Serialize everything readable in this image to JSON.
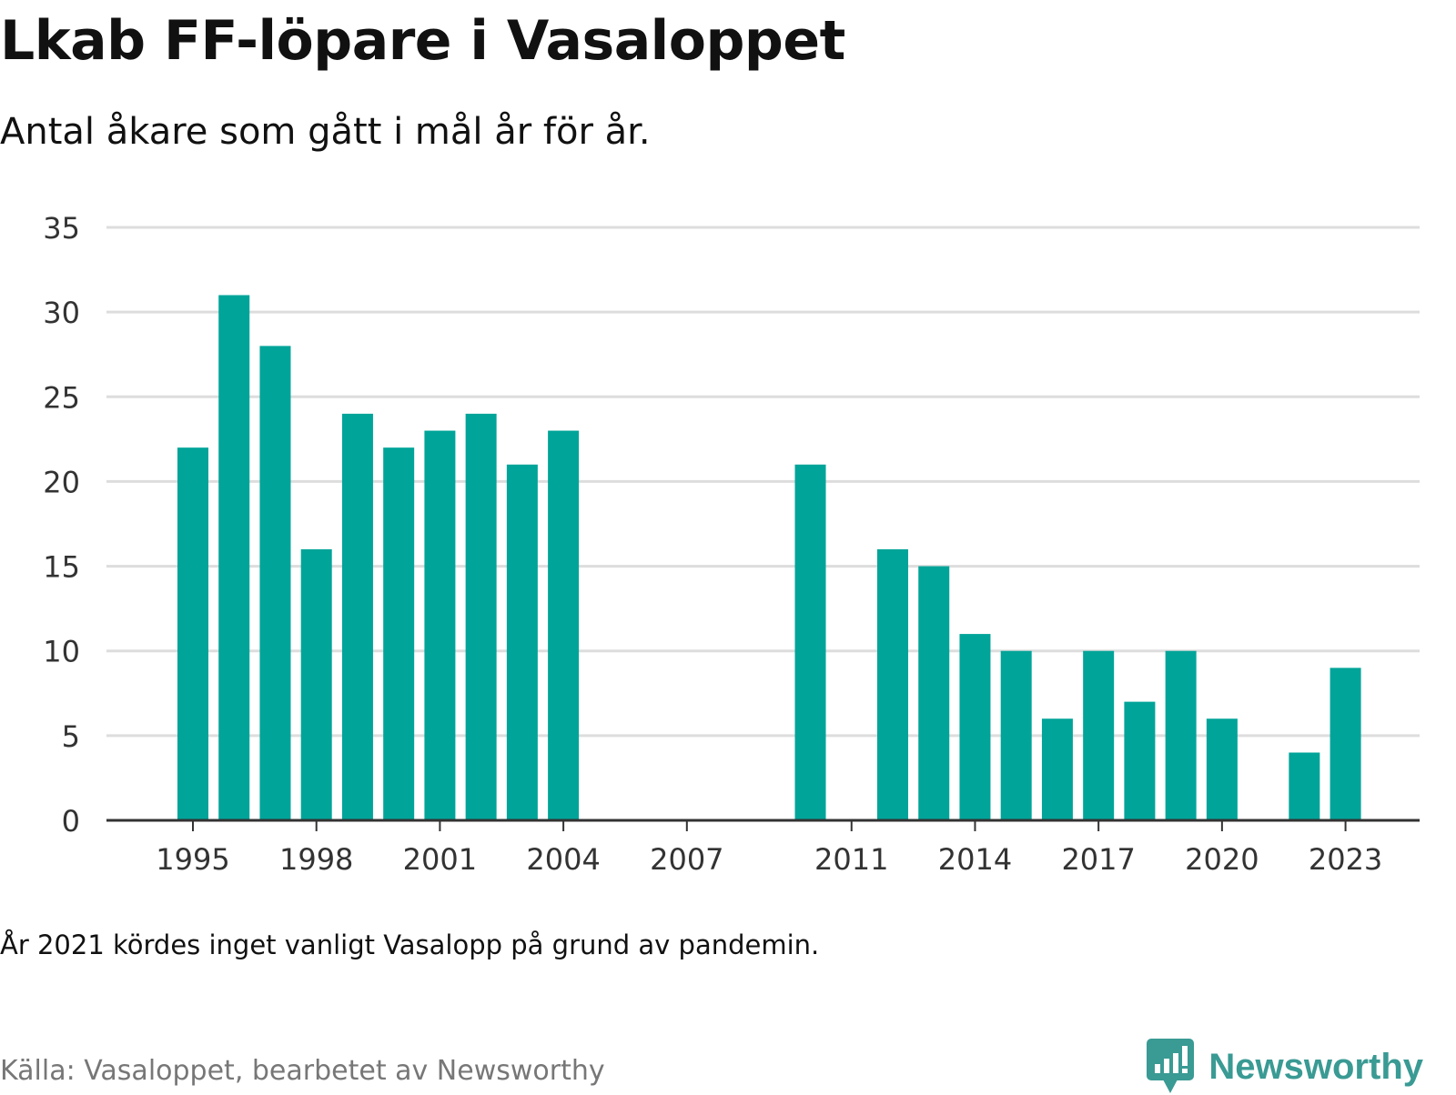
{
  "title": "Lkab FF-löpare i Vasaloppet",
  "subtitle": "Antal åkare som gått i mål år för år.",
  "note": "År 2021 kördes inget vanligt Vasalopp på grund av pandemin.",
  "source": "Källa: Vasaloppet, bearbetet av Newsworthy",
  "brand": {
    "name": "Newsworthy",
    "icon": "bar-chart-speech-bubble-icon",
    "color": "#3a9a94"
  },
  "colors": {
    "bar": "#00a499",
    "gridline": "#dddddd",
    "axis": "#333333"
  },
  "chart_data": {
    "type": "bar",
    "title": "Lkab FF-löpare i Vasaloppet",
    "subtitle": "Antal åkare som gått i mål år för år.",
    "xlabel": "",
    "ylabel": "",
    "x_range": [
      1992.9,
      2024.8
    ],
    "ylim": [
      0,
      35
    ],
    "yticks": [
      0,
      5,
      10,
      15,
      20,
      25,
      30,
      35
    ],
    "xticks": [
      1995,
      1998,
      2001,
      2004,
      2007,
      2011,
      2014,
      2017,
      2020,
      2023
    ],
    "grid": true,
    "legend": "none",
    "x": [
      1995,
      1996,
      1997,
      1998,
      1999,
      2000,
      2001,
      2002,
      2003,
      2004,
      2010,
      2012,
      2013,
      2014,
      2015,
      2016,
      2017,
      2018,
      2019,
      2020,
      2022,
      2023
    ],
    "values": [
      22,
      31,
      28,
      16,
      24,
      22,
      23,
      24,
      21,
      23,
      21,
      16,
      15,
      11,
      10,
      6,
      10,
      7,
      10,
      6,
      4,
      9
    ]
  }
}
